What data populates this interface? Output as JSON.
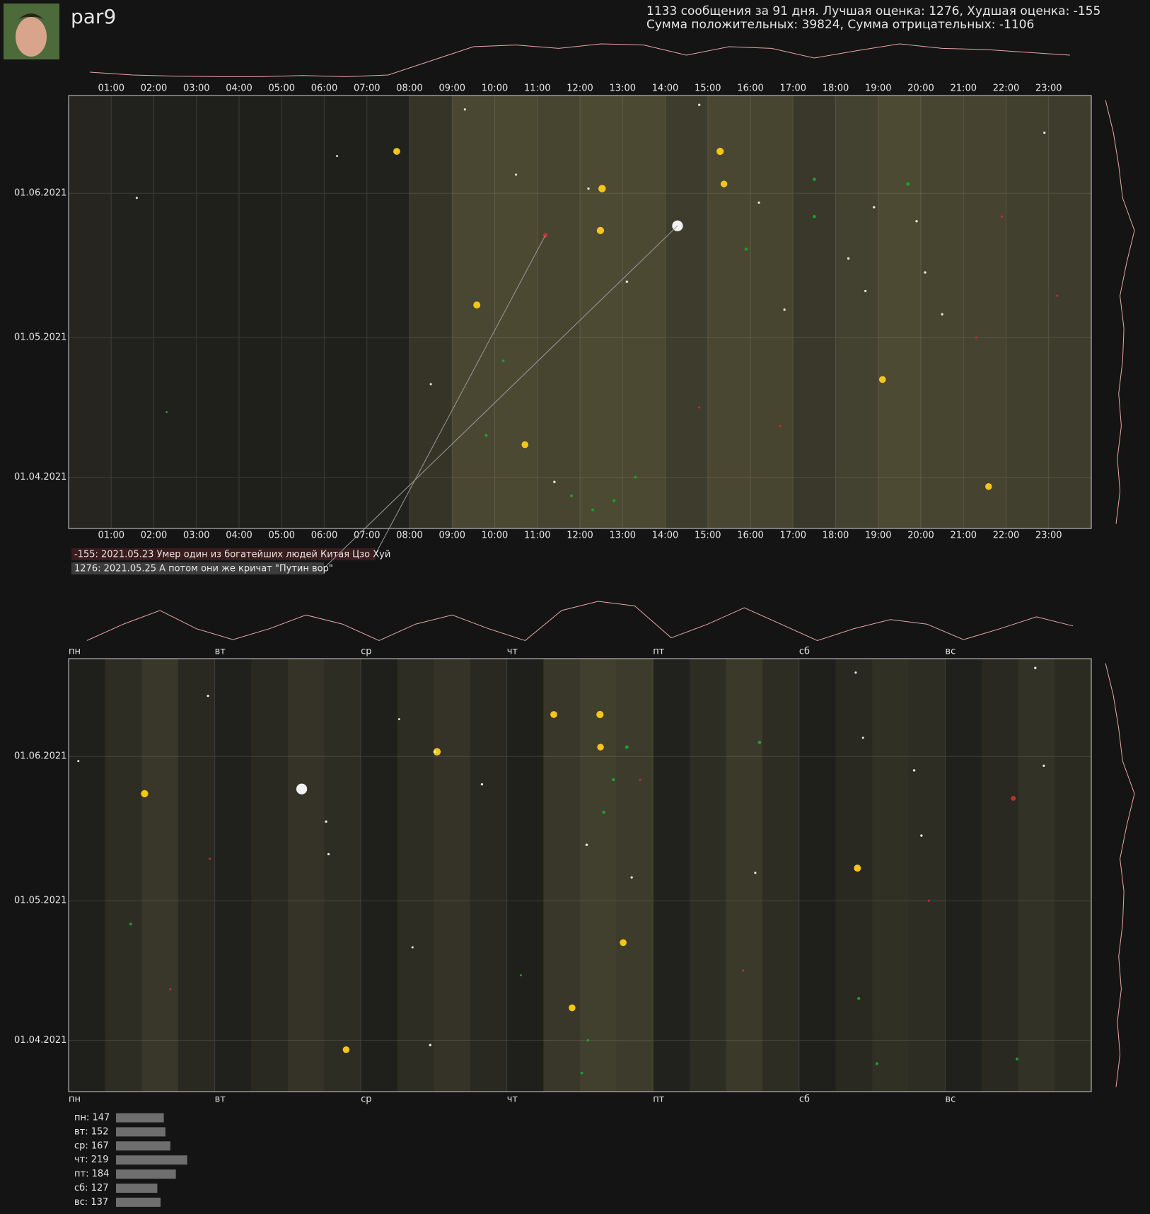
{
  "header": {
    "user": "par9",
    "stats": [
      "1133 сообщения за 91 дня. Лучшая оценка: 1276, Худшая оценка: -155",
      "Сумма положительных: 39824, Сумма отрицательных: -1106"
    ]
  },
  "annotations": [
    "-155: 2021.05.23 Умер один из богатейших людей Китая Цзо Хуй",
    "1276: 2021.05.25 А потом они же кричат \"Путин вор\""
  ],
  "chart_data": [
    {
      "type": "scatter",
      "xlim": [
        0,
        24
      ],
      "xticks": [
        {
          "value": 1,
          "label": "01:00"
        },
        {
          "value": 2,
          "label": "02:00"
        },
        {
          "value": 3,
          "label": "03:00"
        },
        {
          "value": 4,
          "label": "04:00"
        },
        {
          "value": 5,
          "label": "05:00"
        },
        {
          "value": 6,
          "label": "06:00"
        },
        {
          "value": 7,
          "label": "07:00"
        },
        {
          "value": 8,
          "label": "08:00"
        },
        {
          "value": 9,
          "label": "09:00"
        },
        {
          "value": 10,
          "label": "10:00"
        },
        {
          "value": 11,
          "label": "11:00"
        },
        {
          "value": 12,
          "label": "12:00"
        },
        {
          "value": 13,
          "label": "13:00"
        },
        {
          "value": 14,
          "label": "14:00"
        },
        {
          "value": 15,
          "label": "15:00"
        },
        {
          "value": 16,
          "label": "16:00"
        },
        {
          "value": 17,
          "label": "17:00"
        },
        {
          "value": 18,
          "label": "18:00"
        },
        {
          "value": 19,
          "label": "19:00"
        },
        {
          "value": 20,
          "label": "20:00"
        },
        {
          "value": 21,
          "label": "21:00"
        },
        {
          "value": 22,
          "label": "22:00"
        },
        {
          "value": 23,
          "label": "23:00"
        }
      ],
      "ylim": [
        "21.03.2021",
        "22.06.2021"
      ],
      "yticks": [
        "01.04.2021",
        "01.05.2021",
        "01.06.2021"
      ],
      "x": [
        7.7,
        12.52,
        12.48,
        9.58,
        10.71,
        15.29,
        15.38,
        19.1,
        21.59,
        14.29,
        11.19,
        19.7,
        17.5,
        17.5,
        15.9,
        12.2,
        13.1,
        18.3,
        20.1,
        9.3,
        10.5,
        14.8,
        21.3,
        16.7,
        11.8,
        12.8,
        22.9,
        18.9,
        8.5,
        10.2,
        13.3,
        20.5,
        16.2,
        6.3,
        1.6,
        2.3,
        19.9,
        21.9,
        12.3,
        14.8,
        23.2,
        9.8,
        16.8,
        18.7,
        11.4
      ],
      "y": [
        "10.06.2021",
        "02.06.2021",
        "24.05.2021",
        "08.05.2021",
        "08.04.2021",
        "10.06.2021",
        "03.06.2021",
        "22.04.2021",
        "30.03.2021",
        "25.05.2021",
        "23.05.2021",
        "03.06.2021",
        "04.06.2021",
        "27.05.2021",
        "20.05.2021",
        "02.06.2021",
        "13.05.2021",
        "18.05.2021",
        "15.05.2021",
        "19.06.2021",
        "05.06.2021",
        "16.04.2021",
        "01.05.2021",
        "12.04.2021",
        "28.03.2021",
        "27.03.2021",
        "14.06.2021",
        "29.05.2021",
        "21.04.2021",
        "26.04.2021",
        "01.04.2021",
        "06.05.2021",
        "30.05.2021",
        "09.06.2021",
        "31.05.2021",
        "15.04.2021",
        "26.05.2021",
        "27.05.2021",
        "25.03.2021",
        "20.06.2021",
        "10.05.2021",
        "10.04.2021",
        "07.05.2021",
        "11.05.2021",
        "31.03.2021"
      ],
      "values": [
        420,
        510,
        480,
        450,
        400,
        470,
        380,
        410,
        390,
        1276,
        -155,
        60,
        45,
        40,
        35,
        5,
        8,
        6,
        7,
        4,
        3,
        -5,
        -3,
        -4,
        20,
        25,
        5,
        9,
        4,
        15,
        12,
        6,
        5,
        2,
        3,
        2,
        7,
        -6,
        18,
        8,
        -2,
        30,
        5,
        5,
        9
      ],
      "colors": [
        "#f5c518",
        "#f5c518",
        "#f5c518",
        "#f5c518",
        "#f5c518",
        "#f5c518",
        "#f5c518",
        "#f5c518",
        "#f5c518",
        "#f2f2f2",
        "#c0302b",
        "#1f9e2a",
        "#1f9e2a",
        "#1f9e2a",
        "#1f9e2a",
        "#e8e8e8",
        "#e8e8e8",
        "#e8e8e8",
        "#e8e8e8",
        "#e8e8e8",
        "#e8e8e8",
        "#c0302b",
        "#c0302b",
        "#c0302b",
        "#1f9e2a",
        "#1f9e2a",
        "#e8e8e8",
        "#e8e8e8",
        "#e8e8e8",
        "#1f9e2a",
        "#1f9e2a",
        "#e8e8e8",
        "#e8e8e8",
        "#e8e8e8",
        "#e8e8e8",
        "#1f9e2a",
        "#e8e8e8",
        "#c0302b",
        "#1f9e2a",
        "#e8e8e8",
        "#c0302b",
        "#1f9e2a",
        "#e8e8e8",
        "#e8e8e8",
        "#e8e8e8"
      ],
      "hour_activity": [
        10,
        5,
        3,
        2,
        2,
        4,
        2,
        5,
        30,
        55,
        58,
        52,
        60,
        58,
        40,
        55,
        52,
        35,
        48,
        60,
        52,
        50,
        45,
        40
      ],
      "week_activity": {
        "y": [
          "22.03.2021",
          "29.03.2021",
          "05.04.2021",
          "12.04.2021",
          "19.04.2021",
          "26.04.2021",
          "03.05.2021",
          "10.05.2021",
          "17.05.2021",
          "24.05.2021",
          "31.05.2021",
          "07.06.2021",
          "14.06.2021",
          "21.06.2021"
        ],
        "values": [
          70,
          85,
          75,
          90,
          80,
          95,
          100,
          85,
          110,
          140,
          95,
          80,
          60,
          30
        ]
      },
      "curve_color": "#e8a6a6",
      "grid": true
    },
    {
      "type": "scatter_week",
      "xlim": [
        0,
        7
      ],
      "xticks": [
        {
          "value": 0,
          "label": "пн"
        },
        {
          "value": 1,
          "label": "вт"
        },
        {
          "value": 2,
          "label": "ср"
        },
        {
          "value": 3,
          "label": "чт"
        },
        {
          "value": 4,
          "label": "пт"
        },
        {
          "value": 5,
          "label": "сб"
        },
        {
          "value": 6,
          "label": "вс"
        }
      ],
      "ylim": [
        "21.03.2021",
        "22.06.2021"
      ],
      "yticks": [
        "01.04.2021",
        "01.05.2021",
        "01.06.2021"
      ],
      "day_activity": [
        2,
        20,
        35,
        15,
        3,
        15,
        30,
        20,
        2,
        20,
        30,
        15,
        2,
        35,
        45,
        40,
        5,
        20,
        38,
        20,
        2,
        15,
        25,
        20,
        3,
        15,
        28,
        18
      ],
      "curve_color": "#e8a6a6",
      "grid": true
    },
    {
      "type": "hbar",
      "categories": [
        "пн",
        "вт",
        "ср",
        "чт",
        "пт",
        "сб",
        "вс"
      ],
      "values": [
        147,
        152,
        167,
        219,
        184,
        127,
        137
      ],
      "value_labels": [
        "пн: 147",
        "вт: 152",
        "ср: 167",
        "чт: 219",
        "пт: 184",
        "сб: 127",
        "вс: 137"
      ],
      "color": "#6e6e6e"
    }
  ]
}
